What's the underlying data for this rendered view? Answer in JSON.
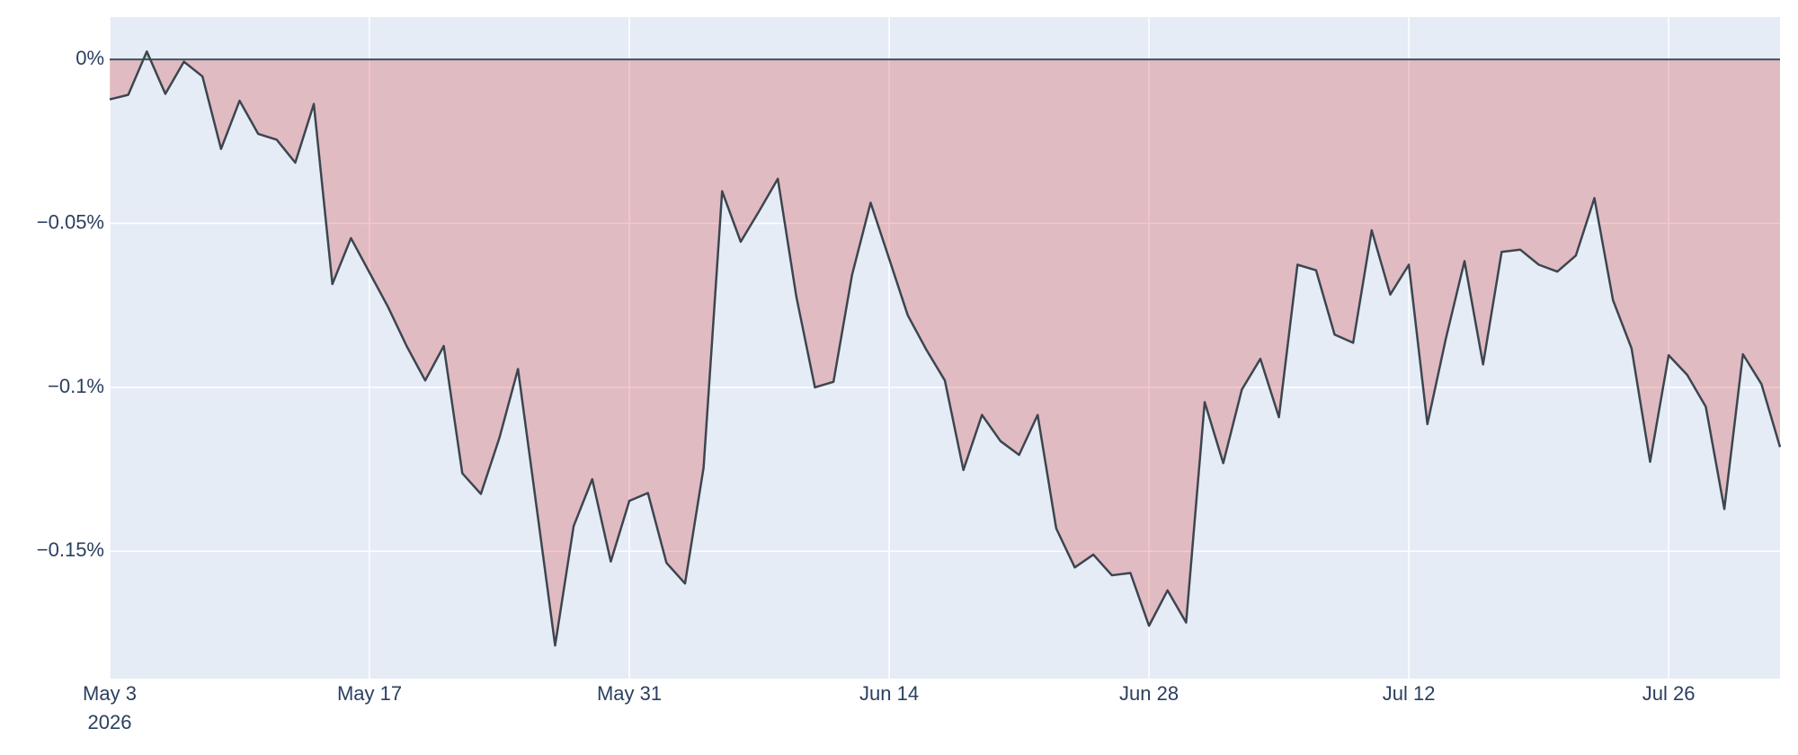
{
  "chart_data": {
    "type": "area",
    "x": [
      "2026-05-03",
      "2026-05-04",
      "2026-05-05",
      "2026-05-06",
      "2026-05-07",
      "2026-05-08",
      "2026-05-09",
      "2026-05-10",
      "2026-05-11",
      "2026-05-12",
      "2026-05-13",
      "2026-05-14",
      "2026-05-15",
      "2026-05-16",
      "2026-05-17",
      "2026-05-18",
      "2026-05-19",
      "2026-05-20",
      "2026-05-21",
      "2026-05-22",
      "2026-05-23",
      "2026-05-24",
      "2026-05-25",
      "2026-05-26",
      "2026-05-27",
      "2026-05-28",
      "2026-05-29",
      "2026-05-30",
      "2026-05-31",
      "2026-06-01",
      "2026-06-02",
      "2026-06-03",
      "2026-06-04",
      "2026-06-05",
      "2026-06-06",
      "2026-06-07",
      "2026-06-08",
      "2026-06-09",
      "2026-06-10",
      "2026-06-11",
      "2026-06-12",
      "2026-06-13",
      "2026-06-14",
      "2026-06-15",
      "2026-06-16",
      "2026-06-17",
      "2026-06-18",
      "2026-06-19",
      "2026-06-20",
      "2026-06-21",
      "2026-06-22",
      "2026-06-23",
      "2026-06-24",
      "2026-06-25",
      "2026-06-26",
      "2026-06-27",
      "2026-06-28",
      "2026-06-29",
      "2026-06-30",
      "2026-07-01",
      "2026-07-02",
      "2026-07-03",
      "2026-07-04",
      "2026-07-05",
      "2026-07-06",
      "2026-07-07",
      "2026-07-08",
      "2026-07-09",
      "2026-07-10",
      "2026-07-11",
      "2026-07-12",
      "2026-07-13",
      "2026-07-14",
      "2026-07-15",
      "2026-07-16",
      "2026-07-17",
      "2026-07-18",
      "2026-07-19",
      "2026-07-20",
      "2026-07-21",
      "2026-07-22",
      "2026-07-23",
      "2026-07-24",
      "2026-07-25",
      "2026-07-26",
      "2026-07-27",
      "2026-07-28",
      "2026-07-29",
      "2026-07-30",
      "2026-07-31",
      "2026-08-01"
    ],
    "values": [
      -0.0122,
      -0.0108,
      0.0024,
      -0.0105,
      -0.0007,
      -0.0052,
      -0.0273,
      -0.0126,
      -0.0227,
      -0.0245,
      -0.0315,
      -0.0136,
      -0.0685,
      -0.0545,
      -0.065,
      -0.0755,
      -0.0874,
      -0.0979,
      -0.0874,
      -0.1262,
      -0.1325,
      -0.1154,
      -0.0944,
      -0.1364,
      -0.1787,
      -0.1423,
      -0.128,
      -0.1531,
      -0.1346,
      -0.1322,
      -0.1535,
      -0.1598,
      -0.1245,
      -0.0402,
      -0.0556,
      -0.0462,
      -0.0364,
      -0.0724,
      -0.1,
      -0.0983,
      -0.0657,
      -0.0437,
      -0.0608,
      -0.078,
      -0.0885,
      -0.0979,
      -0.1252,
      -0.1084,
      -0.1164,
      -0.1206,
      -0.1084,
      -0.143,
      -0.1549,
      -0.151,
      -0.1573,
      -0.1566,
      -0.1727,
      -0.1619,
      -0.1717,
      -0.1045,
      -0.1231,
      -0.1007,
      -0.0913,
      -0.1091,
      -0.0626,
      -0.0643,
      -0.0839,
      -0.0864,
      -0.0521,
      -0.0717,
      -0.0626,
      -0.1112,
      -0.085,
      -0.0615,
      -0.093,
      -0.0587,
      -0.058,
      -0.0626,
      -0.0647,
      -0.0598,
      -0.0423,
      -0.0734,
      -0.0881,
      -0.1227,
      -0.0902,
      -0.0962,
      -0.1059,
      -0.1371,
      -0.0899,
      -0.099,
      -0.1182
    ],
    "line_color": "#3b4650",
    "negative_fill": "rgba(214,39,40,0.25)",
    "positive_fill": "rgba(44,160,44,0.3)",
    "zero_line_color": "#3e5262",
    "xlim": [
      "2026-05-03",
      "2026-08-01"
    ],
    "xticks": [
      {
        "value": "2026-05-03",
        "label": "May 3"
      },
      {
        "value": "2026-05-17",
        "label": "May 17"
      },
      {
        "value": "2026-05-31",
        "label": "May 31"
      },
      {
        "value": "2026-06-14",
        "label": "Jun 14"
      },
      {
        "value": "2026-06-28",
        "label": "Jun 28"
      },
      {
        "value": "2026-07-12",
        "label": "Jul 12"
      },
      {
        "value": "2026-07-26",
        "label": "Jul 26"
      }
    ],
    "x_year_label": "2026",
    "ylim": [
      -0.1888,
      0.0129
    ],
    "yticks": [
      {
        "value": 0,
        "label": "0%"
      },
      {
        "value": -0.05,
        "label": "−0.05%"
      },
      {
        "value": -0.1,
        "label": "−0.1%"
      },
      {
        "value": -0.15,
        "label": "−0.15%"
      }
    ],
    "grid": true
  }
}
